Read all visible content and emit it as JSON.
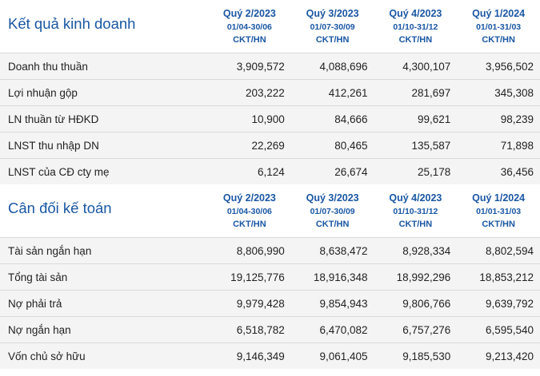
{
  "sections": [
    {
      "title": "Kết quả kinh doanh",
      "columns": [
        {
          "quarter": "Quý 2/2023",
          "range": "01/04-30/06",
          "audit": "CKT/HN"
        },
        {
          "quarter": "Quý 3/2023",
          "range": "01/07-30/09",
          "audit": "CKT/HN"
        },
        {
          "quarter": "Quý 4/2023",
          "range": "01/10-31/12",
          "audit": "CKT/HN"
        },
        {
          "quarter": "Quý 1/2024",
          "range": "01/01-31/03",
          "audit": "CKT/HN"
        }
      ],
      "rows": [
        {
          "label": "Doanh thu thuần",
          "values": [
            "3,909,572",
            "4,088,696",
            "4,300,107",
            "3,956,502"
          ]
        },
        {
          "label": "Lợi nhuận gộp",
          "values": [
            "203,222",
            "412,261",
            "281,697",
            "345,308"
          ]
        },
        {
          "label": "LN thuần từ HĐKD",
          "values": [
            "10,900",
            "84,666",
            "99,621",
            "98,239"
          ]
        },
        {
          "label": "LNST thu nhập DN",
          "values": [
            "22,269",
            "80,465",
            "135,587",
            "71,898"
          ]
        },
        {
          "label": "LNST của CĐ cty mẹ",
          "values": [
            "6,124",
            "26,674",
            "25,178",
            "36,456"
          ]
        }
      ]
    },
    {
      "title": "Cân đối kế toán",
      "columns": [
        {
          "quarter": "Quý 2/2023",
          "range": "01/04-30/06",
          "audit": "CKT/HN"
        },
        {
          "quarter": "Quý 3/2023",
          "range": "01/07-30/09",
          "audit": "CKT/HN"
        },
        {
          "quarter": "Quý 4/2023",
          "range": "01/10-31/12",
          "audit": "CKT/HN"
        },
        {
          "quarter": "Quý 1/2024",
          "range": "01/01-31/03",
          "audit": "CKT/HN"
        }
      ],
      "rows": [
        {
          "label": "Tài sản ngắn hạn",
          "values": [
            "8,806,990",
            "8,638,472",
            "8,928,334",
            "8,802,594"
          ]
        },
        {
          "label": "Tổng tài sản",
          "values": [
            "19,125,776",
            "18,916,348",
            "18,992,296",
            "18,853,212"
          ]
        },
        {
          "label": "Nợ phải trả",
          "values": [
            "9,979,428",
            "9,854,943",
            "9,806,766",
            "9,639,792"
          ]
        },
        {
          "label": "Nợ ngắn hạn",
          "values": [
            "6,518,782",
            "6,470,082",
            "6,757,276",
            "6,595,540"
          ]
        },
        {
          "label": "Vốn chủ sở hữu",
          "values": [
            "9,146,349",
            "9,061,405",
            "9,185,530",
            "9,213,420"
          ]
        }
      ]
    }
  ]
}
